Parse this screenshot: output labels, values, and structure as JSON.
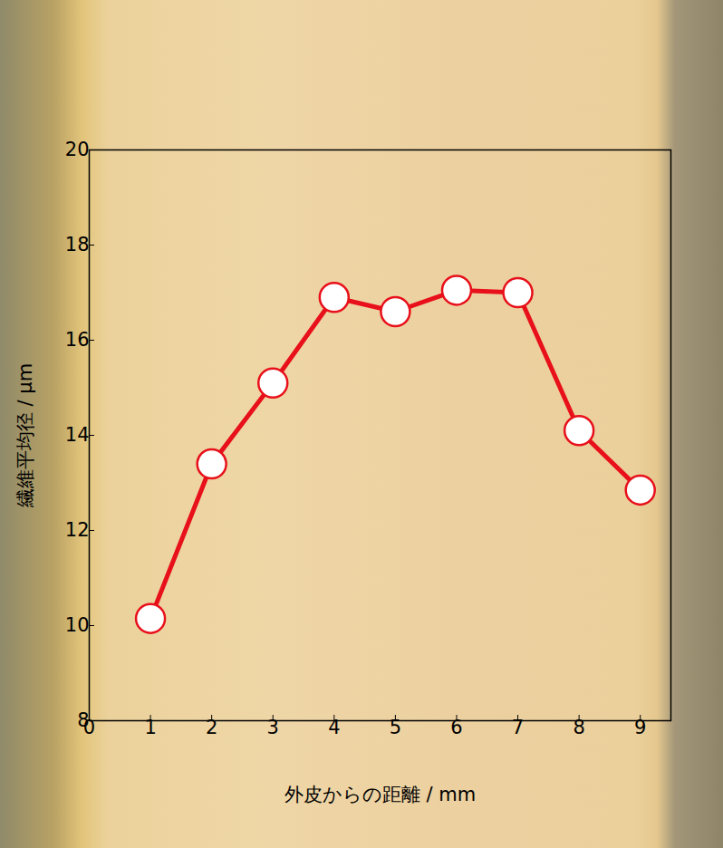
{
  "chart_data": {
    "type": "line",
    "xlabel": "外皮からの距離 / mm",
    "ylabel": "繊維平均径 / μm",
    "x": [
      1,
      2,
      3,
      4,
      5,
      6,
      7,
      8,
      9
    ],
    "values": [
      10.15,
      13.4,
      15.1,
      16.9,
      16.6,
      17.05,
      17.0,
      14.1,
      12.85
    ],
    "color": "#e8101a",
    "marker": "circle",
    "line_style": "solid",
    "xlim": [
      0,
      9.5
    ],
    "xticks": [
      0,
      1,
      2,
      3,
      4,
      5,
      6,
      7,
      8,
      9
    ],
    "ylim": [
      8,
      20
    ],
    "yticks": [
      8,
      10,
      12,
      14,
      16,
      18,
      20
    ],
    "grid": false
  }
}
